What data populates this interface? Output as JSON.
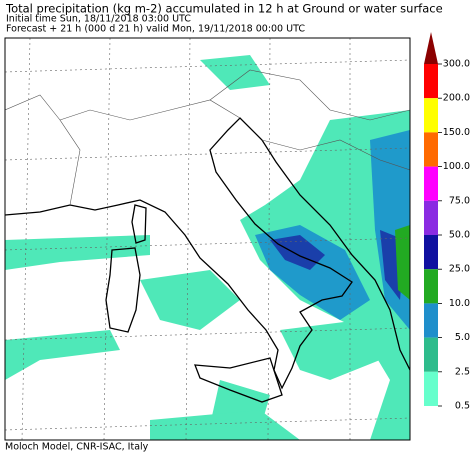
{
  "title": "Total precipitation (kg m-2) accumulated in  12 h at Ground or water surface",
  "subtitle_lines": [
    "Initial time  Sun, 18/11/2018  03:00 UTC",
    "Forecast  +  21 h  (000 d 21 h)  valid Mon, 19/11/2018 00:00 UTC"
  ],
  "footer": "Moloch Model, CNR-ISAC, Italy",
  "colorbar": {
    "levels": [
      {
        "value": 300,
        "label": "300.0"
      },
      {
        "value": 200,
        "label": "200.0"
      },
      {
        "value": 150,
        "label": "150.0"
      },
      {
        "value": 100,
        "label": "100.0"
      },
      {
        "value": 75,
        "label": "75.0"
      },
      {
        "value": 50,
        "label": "50.0"
      },
      {
        "value": 25,
        "label": "25.0"
      },
      {
        "value": 10,
        "label": "10.0"
      },
      {
        "value": 5,
        "label": "5.0"
      },
      {
        "value": 2.5,
        "label": "2.5"
      },
      {
        "value": 0.5,
        "label": "0.5"
      }
    ],
    "colors": [
      "#ff0000",
      "#ffff00",
      "#ff6a00",
      "#ff00ff",
      "#8a2be2",
      "#1010a0",
      "#22aa22",
      "#1f8fcb",
      "#2ebc8c",
      "#66ffcc"
    ],
    "over_color": "#8b0000"
  }
}
